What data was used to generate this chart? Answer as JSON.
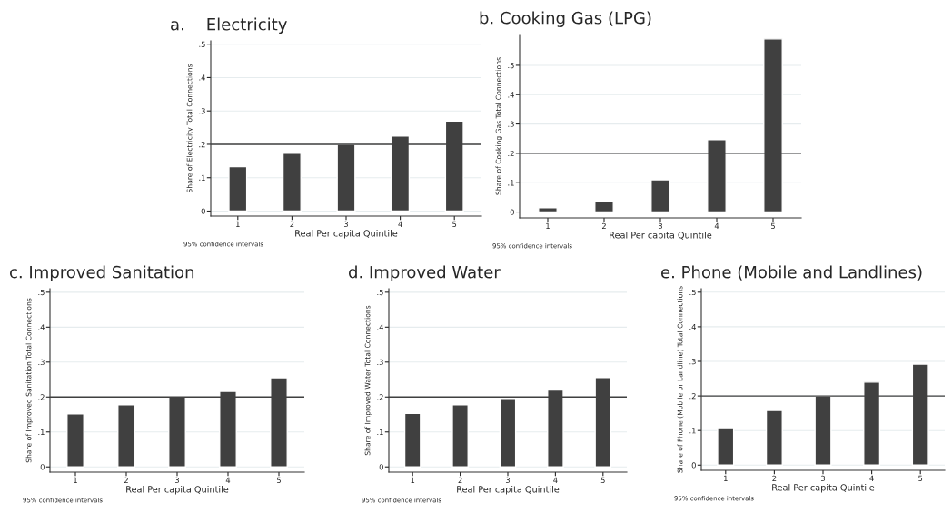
{
  "chart_data": [
    {
      "type": "bar",
      "title": "a.    Electricity",
      "xlabel": "Real Per capita Quintile",
      "ylabel": "Share of Electricity Total Connections",
      "categories": [
        "1",
        "2",
        "3",
        "4",
        "5"
      ],
      "values": [
        0.133,
        0.173,
        0.2,
        0.225,
        0.27
      ],
      "color": "#404040",
      "ylim": [
        -0.015,
        0.51
      ],
      "yticks": [
        0,
        {
          "value": 0.1,
          "label": ".1"
        },
        {
          "value": 0.2,
          "label": ".2"
        },
        {
          "value": 0.3,
          "label": ".3"
        },
        {
          "value": 0.4,
          "label": ".4"
        },
        {
          "value": 0.5,
          "label": ".5"
        }
      ],
      "grid": "y",
      "ref_lines": [
        {
          "axis": "y",
          "value": 0.2,
          "color": "#404040"
        }
      ],
      "annotations": [
        "95% confidence intervals"
      ]
    },
    {
      "type": "bar",
      "title": "b. Cooking Gas (LPG)",
      "xlabel": "Real Per capita Quintile",
      "ylabel": "Share of Cooking Gas Total Connections",
      "categories": [
        "1",
        "2",
        "3",
        "4",
        "5"
      ],
      "values": [
        0.015,
        0.037,
        0.11,
        0.247,
        0.59
      ],
      "color": "#404040",
      "ylim": [
        -0.02,
        0.605
      ],
      "yticks": [
        0,
        {
          "value": 0.1,
          "label": ".1"
        },
        {
          "value": 0.2,
          "label": ".2"
        },
        {
          "value": 0.3,
          "label": ".3"
        },
        {
          "value": 0.4,
          "label": ".4"
        },
        {
          "value": 0.5,
          "label": ".5"
        }
      ],
      "grid": "y",
      "ref_lines": [
        {
          "axis": "y",
          "value": 0.2,
          "color": "#404040"
        }
      ],
      "annotations": [
        "95% confidence intervals"
      ]
    },
    {
      "type": "bar",
      "title": "c. Improved Sanitation",
      "xlabel": "Real Per capita Quintile",
      "ylabel": "Share of Improved Sanitation Total Connections",
      "categories": [
        "1",
        "2",
        "3",
        "4",
        "5"
      ],
      "values": [
        0.152,
        0.178,
        0.2,
        0.216,
        0.255
      ],
      "color": "#404040",
      "ylim": [
        -0.015,
        0.51
      ],
      "yticks": [
        0,
        {
          "value": 0.1,
          "label": ".1"
        },
        {
          "value": 0.2,
          "label": ".2"
        },
        {
          "value": 0.3,
          "label": ".3"
        },
        {
          "value": 0.4,
          "label": ".4"
        },
        {
          "value": 0.5,
          "label": ".5"
        }
      ],
      "grid": "y",
      "ref_lines": [
        {
          "axis": "y",
          "value": 0.2,
          "color": "#404040"
        }
      ],
      "annotations": [
        "95% confidence intervals"
      ]
    },
    {
      "type": "bar",
      "title": "d. Improved Water",
      "xlabel": "Real Per capita Quintile",
      "ylabel": "Share of Improved Water Total Connections",
      "categories": [
        "1",
        "2",
        "3",
        "4",
        "5"
      ],
      "values": [
        0.153,
        0.178,
        0.196,
        0.22,
        0.256
      ],
      "color": "#404040",
      "ylim": [
        -0.015,
        0.51
      ],
      "yticks": [
        0,
        {
          "value": 0.1,
          "label": ".1"
        },
        {
          "value": 0.2,
          "label": ".2"
        },
        {
          "value": 0.3,
          "label": ".3"
        },
        {
          "value": 0.4,
          "label": ".4"
        },
        {
          "value": 0.5,
          "label": ".5"
        }
      ],
      "grid": "y",
      "ref_lines": [
        {
          "axis": "y",
          "value": 0.2,
          "color": "#404040"
        }
      ],
      "annotations": [
        "95% confidence intervals"
      ]
    },
    {
      "type": "bar",
      "title": "e. Phone (Mobile and Landlines)",
      "xlabel": "Real Per capita Quintile",
      "ylabel": "Share of Phone (Mobile or Landline) Total Connections",
      "categories": [
        "1",
        "2",
        "3",
        "4",
        "5"
      ],
      "values": [
        0.108,
        0.158,
        0.2,
        0.24,
        0.292
      ],
      "color": "#404040",
      "ylim": [
        -0.015,
        0.51
      ],
      "yticks": [
        0,
        {
          "value": 0.1,
          "label": ".1"
        },
        {
          "value": 0.2,
          "label": ".2"
        },
        {
          "value": 0.3,
          "label": ".3"
        },
        {
          "value": 0.4,
          "label": ".4"
        },
        {
          "value": 0.5,
          "label": ".5"
        }
      ],
      "grid": "y",
      "ref_lines": [
        {
          "axis": "y",
          "value": 0.2,
          "color": "#404040"
        }
      ],
      "annotations": [
        "95% confidence intervals"
      ]
    }
  ]
}
